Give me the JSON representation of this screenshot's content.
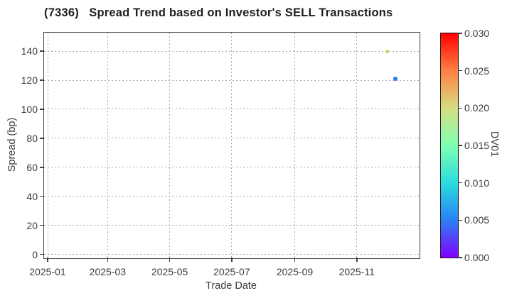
{
  "figure": {
    "background": "#ffffff",
    "text_color": "#3c3c3c",
    "grid_color": "#ababab",
    "spine_color": "#3f3f3f"
  },
  "chart_data": {
    "type": "scatter",
    "title": "(7336)   Spread Trend based on Investor's SELL Transactions",
    "xlabel": "Trade Date",
    "ylabel": "Spread (bp)",
    "grid": "dotted, on",
    "legend_position": "none",
    "ylim": [
      -2.2,
      152.8
    ],
    "xlim_days": [
      -3.5,
      365
    ],
    "y_ticks": [
      0,
      20,
      40,
      60,
      80,
      100,
      120,
      140
    ],
    "x_ticks": [
      {
        "label": "2025-01",
        "day": 0
      },
      {
        "label": "2025-03",
        "day": 59
      },
      {
        "label": "2025-05",
        "day": 120
      },
      {
        "label": "2025-07",
        "day": 181
      },
      {
        "label": "2025-09",
        "day": 243
      },
      {
        "label": "2025-11",
        "day": 304
      }
    ],
    "points": [
      {
        "trade_date": "2025-12-01",
        "day": 334,
        "spread_bp": 140,
        "dv01": 0.02,
        "color": "#c8d55e",
        "marker_px": 5
      },
      {
        "trade_date": "2025-12-09",
        "day": 342,
        "spread_bp": 121,
        "dv01": 0.005,
        "color": "#2e7bf0",
        "marker_px": 6
      }
    ],
    "colorbar": {
      "label": "DV01",
      "min": 0.0,
      "max": 0.03,
      "tick_labels": [
        "0.000",
        "0.005",
        "0.010",
        "0.015",
        "0.020",
        "0.025",
        "0.030"
      ],
      "gradient_bottom_to_top": [
        "#8000ff",
        "#2a80f6",
        "#2addde",
        "#80ffb4",
        "#d5dd80",
        "#ff8042",
        "#ff0000"
      ]
    }
  }
}
